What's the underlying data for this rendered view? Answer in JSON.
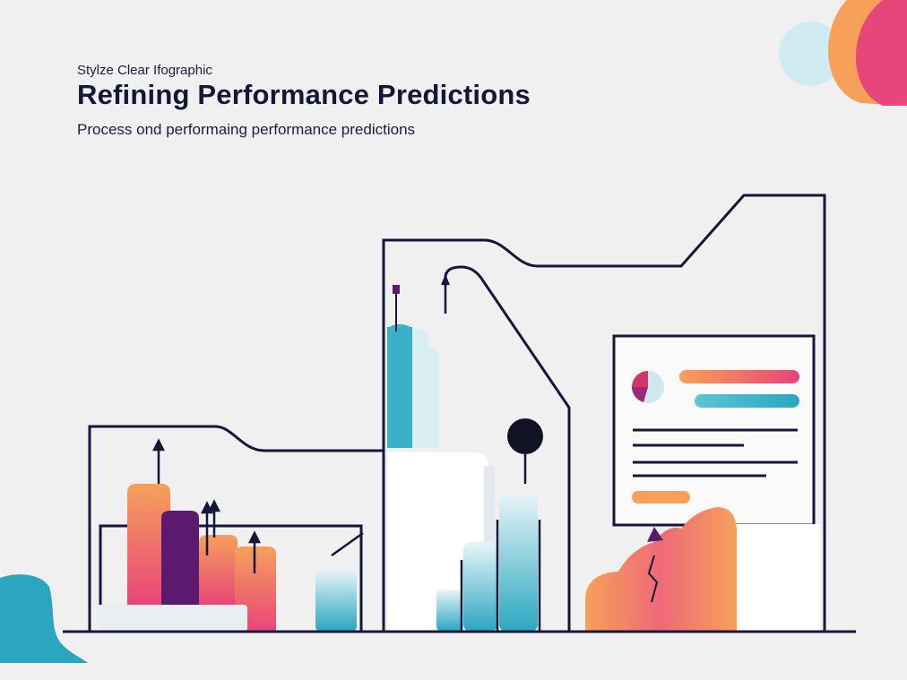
{
  "header": {
    "kicker": "Stylze Clear Ifographic",
    "title": "Refining Performance Predictions",
    "subtitle": "Process ond performaing performance predictions"
  },
  "colors": {
    "background": "#f0f0f0",
    "ink": "#14173a",
    "teal": "#2aa6c0",
    "light_teal": "#bfe3ec",
    "orange": "#f6a05a",
    "pink": "#e8457a",
    "purple": "#5b1a6e",
    "magenta": "#d6336c"
  },
  "icons": [
    "flag-icon",
    "arrow-up-icon",
    "pie-chart-icon",
    "dot-marker-icon",
    "decorative-blob"
  ]
}
